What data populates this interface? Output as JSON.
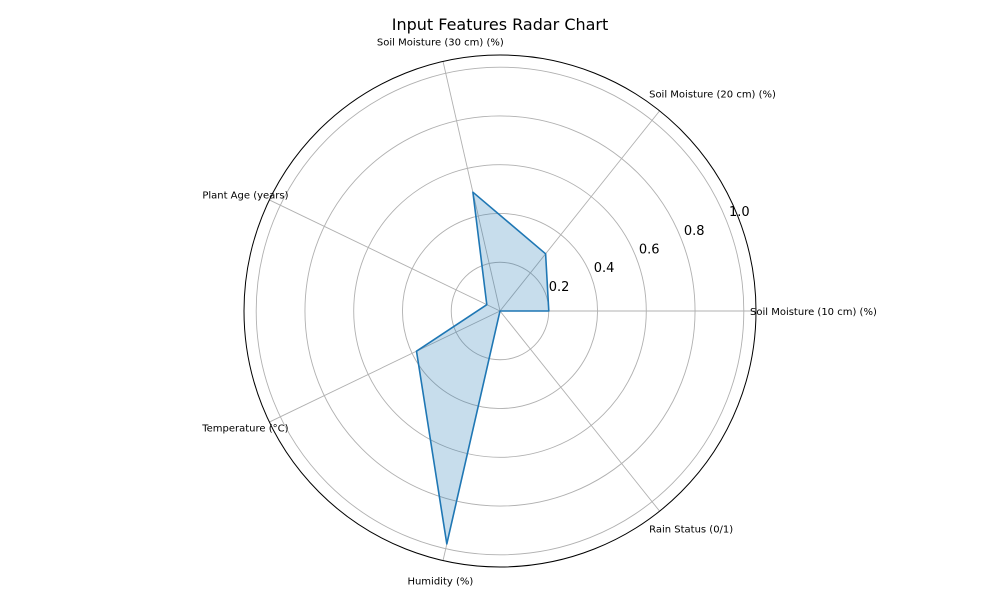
{
  "chart_data": {
    "type": "radar",
    "title": "Input Features Radar Chart",
    "axes": [
      "Soil Moisture (10 cm) (%)",
      "Soil Moisture (20 cm) (%)",
      "Soil Moisture (30 cm) (%)",
      "Plant Age (years)",
      "Temperature (°C)",
      "Humidity (%)",
      "Rain Status (0/1)"
    ],
    "values": [
      0.2,
      0.3,
      0.5,
      0.06,
      0.38,
      0.98,
      0.0
    ],
    "rlim": [
      0,
      1.05
    ],
    "rticks": [
      0.2,
      0.4,
      0.6,
      0.8,
      1.0
    ],
    "rtick_labels": [
      "0.2",
      "0.4",
      "0.6",
      "0.8",
      "1.0"
    ],
    "grid": true,
    "legend": false,
    "colors": {
      "series": "#1f77b4",
      "grid": "#b0b0b0",
      "frame": "#000000"
    }
  }
}
